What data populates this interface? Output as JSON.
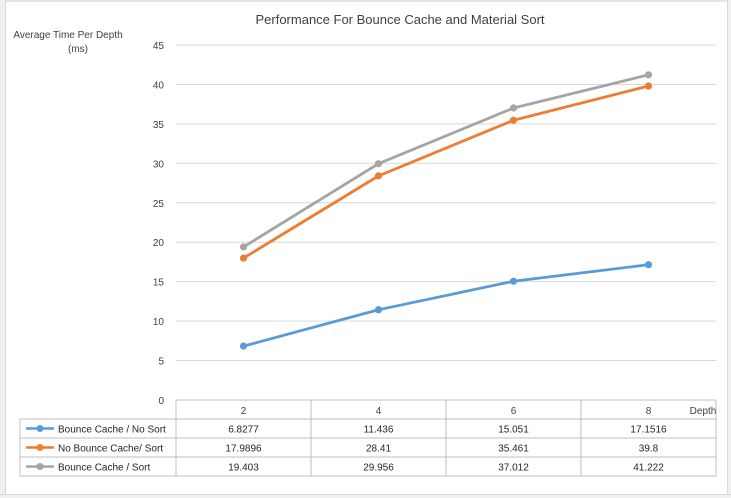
{
  "chart_data": {
    "type": "line",
    "title": "Performance For Bounce Cache and Material Sort",
    "ylabel_line1": "Average Time Per Depth",
    "ylabel_line2": "(ms)",
    "xlabel": "Depth",
    "ylim": [
      0,
      45
    ],
    "yticks": [
      0,
      5,
      10,
      15,
      20,
      25,
      30,
      35,
      40,
      45
    ],
    "categories": [
      "2",
      "4",
      "6",
      "8"
    ],
    "grid": true,
    "legend": "data-table-bottom",
    "series": [
      {
        "name": "Bounce Cache / No Sort",
        "color": "#5b9bd5",
        "values": [
          6.8277,
          11.436,
          15.051,
          17.1516
        ],
        "labels": [
          "6.8277",
          "11.436",
          "15.051",
          "17.1516"
        ]
      },
      {
        "name": "No Bounce Cache/ Sort",
        "color": "#ed7d31",
        "values": [
          17.9896,
          28.41,
          35.461,
          39.8
        ],
        "labels": [
          "17.9896",
          "28.41",
          "35.461",
          "39.8"
        ]
      },
      {
        "name": "Bounce Cache / Sort",
        "color": "#a5a5a5",
        "values": [
          19.403,
          29.956,
          37.012,
          41.222
        ],
        "labels": [
          "19.403",
          "29.956",
          "37.012",
          "41.222"
        ]
      }
    ]
  }
}
